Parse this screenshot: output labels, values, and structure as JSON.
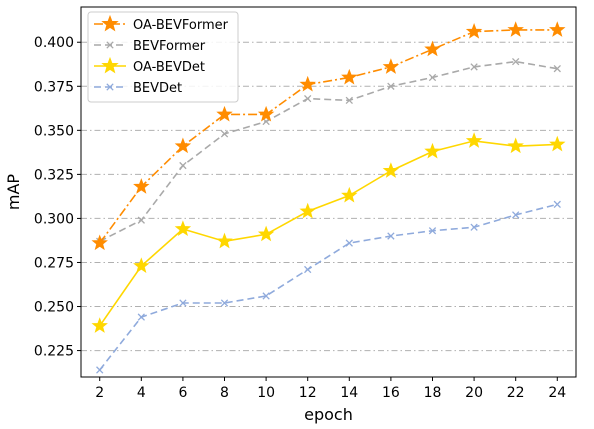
{
  "chart_data": {
    "type": "line",
    "title": "",
    "xlabel": "epoch",
    "ylabel": "mAP",
    "x": [
      2,
      4,
      6,
      8,
      10,
      12,
      14,
      16,
      18,
      20,
      22,
      24
    ],
    "xticks": [
      "2",
      "4",
      "6",
      "8",
      "10",
      "12",
      "14",
      "16",
      "18",
      "20",
      "22",
      "24"
    ],
    "yticks": [
      "0.225",
      "0.250",
      "0.275",
      "0.300",
      "0.325",
      "0.350",
      "0.375",
      "0.400"
    ],
    "ylim": [
      0.21,
      0.42
    ],
    "xlim": [
      1.1,
      24.9
    ],
    "grid": "horizontal dash-dot",
    "legend_position": "top-left",
    "series": [
      {
        "name": "OA-BEVFormer",
        "color": "#ff8c00",
        "marker": "star",
        "line_style": "dashdot",
        "values": [
          0.286,
          0.318,
          0.341,
          0.359,
          0.359,
          0.376,
          0.38,
          0.386,
          0.396,
          0.406,
          0.407,
          0.407
        ]
      },
      {
        "name": "BEVFormer",
        "color": "#a9a9a9",
        "marker": "x",
        "line_style": "dashed",
        "values": [
          0.287,
          0.299,
          0.33,
          0.348,
          0.355,
          0.368,
          0.367,
          0.375,
          0.38,
          0.386,
          0.389,
          0.385
        ]
      },
      {
        "name": "OA-BEVDet",
        "color": "#ffd700",
        "marker": "star",
        "line_style": "solid",
        "values": [
          0.239,
          0.273,
          0.294,
          0.287,
          0.291,
          0.304,
          0.313,
          0.327,
          0.338,
          0.344,
          0.341,
          0.342
        ]
      },
      {
        "name": "BEVDet",
        "color": "#8faadc",
        "marker": "x",
        "line_style": "dashed",
        "values": [
          0.214,
          0.244,
          0.252,
          0.252,
          0.256,
          0.271,
          0.286,
          0.29,
          0.293,
          0.295,
          0.302,
          0.308
        ]
      }
    ]
  }
}
